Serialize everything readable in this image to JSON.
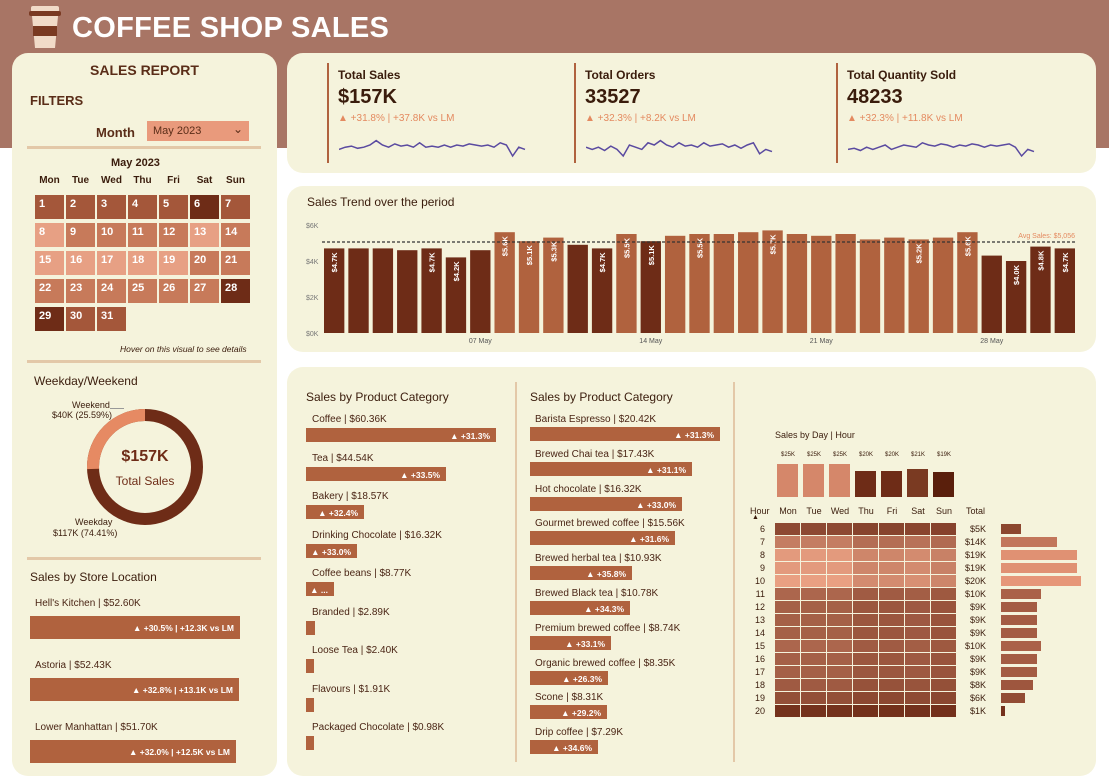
{
  "header": {
    "title": "COFFEE SHOP SALES"
  },
  "report": {
    "title": "SALES REPORT",
    "filters": "FILTERS",
    "month_label": "Month",
    "month_value": "May 2023"
  },
  "calendar": {
    "title": "May 2023",
    "days": [
      "Mon",
      "Tue",
      "Wed",
      "Thu",
      "Fri",
      "Sat",
      "Sun"
    ],
    "hint": "Hover on this visual to see details",
    "dates": [
      {
        "d": "1",
        "c": "#a4573a"
      },
      {
        "d": "2",
        "c": "#a4573a"
      },
      {
        "d": "3",
        "c": "#a4573a"
      },
      {
        "d": "4",
        "c": "#a4573a"
      },
      {
        "d": "5",
        "c": "#a4573a"
      },
      {
        "d": "6",
        "c": "#6e2c17"
      },
      {
        "d": "7",
        "c": "#a4573a"
      },
      {
        "d": "8",
        "c": "#e7a084"
      },
      {
        "d": "9",
        "c": "#c77a5a"
      },
      {
        "d": "10",
        "c": "#c77a5a"
      },
      {
        "d": "11",
        "c": "#c77a5a"
      },
      {
        "d": "12",
        "c": "#c77a5a"
      },
      {
        "d": "13",
        "c": "#e7a084"
      },
      {
        "d": "14",
        "c": "#c77a5a"
      },
      {
        "d": "15",
        "c": "#e7a084"
      },
      {
        "d": "16",
        "c": "#e7a084"
      },
      {
        "d": "17",
        "c": "#e7a084"
      },
      {
        "d": "18",
        "c": "#e7a084"
      },
      {
        "d": "19",
        "c": "#e7a084"
      },
      {
        "d": "20",
        "c": "#c77a5a"
      },
      {
        "d": "21",
        "c": "#c77a5a"
      },
      {
        "d": "22",
        "c": "#c77a5a"
      },
      {
        "d": "23",
        "c": "#c77a5a"
      },
      {
        "d": "24",
        "c": "#c77a5a"
      },
      {
        "d": "25",
        "c": "#c77a5a"
      },
      {
        "d": "26",
        "c": "#c77a5a"
      },
      {
        "d": "27",
        "c": "#c77a5a"
      },
      {
        "d": "28",
        "c": "#6e2c17"
      },
      {
        "d": "29",
        "c": "#6e2c17"
      },
      {
        "d": "30",
        "c": "#a4573a"
      },
      {
        "d": "31",
        "c": "#a4573a"
      }
    ]
  },
  "weekday": {
    "title": "Weekday/Weekend",
    "center_value": "$157K",
    "center_label": "Total Sales",
    "weekend_label": "Weekend",
    "weekend_value": "$40K (25.59%)",
    "weekday_label": "Weekday",
    "weekday_value": "$117K (74.41%)",
    "weekend_share": 0.2559
  },
  "stores": {
    "title": "Sales by Store Location",
    "items": [
      {
        "name": "Hell's Kitchen | $52.60K",
        "change": "▲ +30.5% | +12.3K vs LM",
        "value": 52.6
      },
      {
        "name": "Astoria | $52.43K",
        "change": "▲ +32.8% | +13.1K vs LM",
        "value": 52.43
      },
      {
        "name": "Lower Manhattan | $51.70K",
        "change": "▲ +32.0% | +12.5K vs LM",
        "value": 51.7
      }
    ]
  },
  "kpis": [
    {
      "title": "Total Sales",
      "value": "$157K",
      "change": "▲ +31.8% | +37.8K vs LM"
    },
    {
      "title": "Total Orders",
      "value": "33527",
      "change": "▲ +32.3% | +8.2K vs LM"
    },
    {
      "title": "Total Quantity Sold",
      "value": "48233",
      "change": "▲ +32.3% | +11.8K vs LM"
    }
  ],
  "trend": {
    "title": "Sales Trend over the period",
    "avg_label": "Avg Sales: $5,056",
    "y_ticks": [
      "$6K",
      "$4K",
      "$2K",
      "$0K"
    ],
    "x_ticks": [
      "07 May",
      "14 May",
      "21 May",
      "28 May"
    ],
    "avg": 5.056,
    "bars": [
      {
        "v": 4.7,
        "l": "$4.7K",
        "c": "#6e2c17"
      },
      {
        "v": 4.7,
        "l": "",
        "c": "#6e2c17"
      },
      {
        "v": 4.7,
        "l": "",
        "c": "#6e2c17"
      },
      {
        "v": 4.6,
        "l": "",
        "c": "#6e2c17"
      },
      {
        "v": 4.7,
        "l": "$4.7K",
        "c": "#6e2c17"
      },
      {
        "v": 4.2,
        "l": "$4.2K",
        "c": "#6e2c17"
      },
      {
        "v": 4.6,
        "l": "",
        "c": "#6e2c17"
      },
      {
        "v": 5.6,
        "l": "$5.6K",
        "c": "#b0623e"
      },
      {
        "v": 5.1,
        "l": "$5.1K",
        "c": "#b0623e"
      },
      {
        "v": 5.3,
        "l": "$5.3K",
        "c": "#b0623e"
      },
      {
        "v": 4.9,
        "l": "",
        "c": "#6e2c17"
      },
      {
        "v": 4.7,
        "l": "$4.7K",
        "c": "#6e2c17"
      },
      {
        "v": 5.5,
        "l": "$5.5K",
        "c": "#b0623e"
      },
      {
        "v": 5.1,
        "l": "$5.1K",
        "c": "#6e2c17"
      },
      {
        "v": 5.4,
        "l": "",
        "c": "#b0623e"
      },
      {
        "v": 5.5,
        "l": "$5.5K",
        "c": "#b0623e"
      },
      {
        "v": 5.5,
        "l": "",
        "c": "#b0623e"
      },
      {
        "v": 5.6,
        "l": "",
        "c": "#b0623e"
      },
      {
        "v": 5.7,
        "l": "$5.7K",
        "c": "#b0623e"
      },
      {
        "v": 5.5,
        "l": "",
        "c": "#b0623e"
      },
      {
        "v": 5.4,
        "l": "",
        "c": "#b0623e"
      },
      {
        "v": 5.5,
        "l": "",
        "c": "#b0623e"
      },
      {
        "v": 5.2,
        "l": "",
        "c": "#b0623e"
      },
      {
        "v": 5.3,
        "l": "",
        "c": "#b0623e"
      },
      {
        "v": 5.2,
        "l": "$5.2K",
        "c": "#b0623e"
      },
      {
        "v": 5.3,
        "l": "",
        "c": "#b0623e"
      },
      {
        "v": 5.6,
        "l": "$5.6K",
        "c": "#b0623e"
      },
      {
        "v": 4.3,
        "l": "",
        "c": "#6e2c17"
      },
      {
        "v": 4.0,
        "l": "$4.0K",
        "c": "#6e2c17"
      },
      {
        "v": 4.8,
        "l": "$4.8K",
        "c": "#6e2c17"
      },
      {
        "v": 4.7,
        "l": "$4.7K",
        "c": "#6e2c17"
      }
    ]
  },
  "category": {
    "title": "Sales by Product Category",
    "items": [
      {
        "name": "Coffee | $60.36K",
        "change": "▲ +31.3%",
        "value": 60.36
      },
      {
        "name": "Tea | $44.54K",
        "change": "▲ +33.5%",
        "value": 44.54
      },
      {
        "name": "Bakery | $18.57K",
        "change": "▲ +32.4%",
        "value": 18.57
      },
      {
        "name": "Drinking Chocolate | $16.32K",
        "change": "▲ +33.0%",
        "value": 16.32
      },
      {
        "name": "Coffee beans | $8.77K",
        "change": "▲ ...",
        "value": 8.77
      },
      {
        "name": "Branded | $2.89K",
        "change": "",
        "value": 2.89
      },
      {
        "name": "Loose Tea | $2.40K",
        "change": "",
        "value": 2.4
      },
      {
        "name": "Flavours | $1.91K",
        "change": "",
        "value": 1.91
      },
      {
        "name": "Packaged Chocolate | $0.98K",
        "change": "",
        "value": 0.98
      }
    ]
  },
  "product": {
    "title": "Sales by Product Category",
    "items": [
      {
        "name": "Barista Espresso | $20.42K",
        "change": "▲ +31.3%",
        "value": 20.42
      },
      {
        "name": "Brewed Chai tea | $17.43K",
        "change": "▲ +31.1%",
        "value": 17.43
      },
      {
        "name": "Hot chocolate | $16.32K",
        "change": "▲ +33.0%",
        "value": 16.32
      },
      {
        "name": "Gourmet brewed coffee | $15.56K",
        "change": "▲ +31.6%",
        "value": 15.56
      },
      {
        "name": "Brewed herbal tea | $10.93K",
        "change": "▲ +35.8%",
        "value": 10.93
      },
      {
        "name": "Brewed Black tea | $10.78K",
        "change": "▲ +34.3%",
        "value": 10.78
      },
      {
        "name": "Premium brewed coffee | $8.74K",
        "change": "▲ +33.1%",
        "value": 8.74
      },
      {
        "name": "Organic brewed coffee | $8.35K",
        "change": "▲ +26.3%",
        "value": 8.35
      },
      {
        "name": "Scone | $8.31K",
        "change": "▲ +29.2%",
        "value": 8.31
      },
      {
        "name": "Drip coffee | $7.29K",
        "change": "▲ +34.6%",
        "value": 7.29
      }
    ]
  },
  "heatmap": {
    "title": "Sales by Day | Hour",
    "hour_label": "Hour",
    "total_label": "Total",
    "days": [
      "Mon",
      "Tue",
      "Wed",
      "Thu",
      "Fri",
      "Sat",
      "Sun"
    ],
    "day_totals": [
      {
        "l": "$25K",
        "v": 25,
        "c": "#d5876a"
      },
      {
        "l": "$25K",
        "v": 25,
        "c": "#d5876a"
      },
      {
        "l": "$25K",
        "v": 25,
        "c": "#d5876a"
      },
      {
        "l": "$20K",
        "v": 20,
        "c": "#6e2c17"
      },
      {
        "l": "$20K",
        "v": 20,
        "c": "#6e2c17"
      },
      {
        "l": "$21K",
        "v": 21,
        "c": "#7a3a22"
      },
      {
        "l": "$19K",
        "v": 19,
        "c": "#5a1f0c"
      }
    ],
    "hours": [
      {
        "h": "6",
        "t": "$5K",
        "v": 5
      },
      {
        "h": "7",
        "t": "$14K",
        "v": 14
      },
      {
        "h": "8",
        "t": "$19K",
        "v": 19
      },
      {
        "h": "9",
        "t": "$19K",
        "v": 19
      },
      {
        "h": "10",
        "t": "$20K",
        "v": 20
      },
      {
        "h": "11",
        "t": "$10K",
        "v": 10
      },
      {
        "h": "12",
        "t": "$9K",
        "v": 9
      },
      {
        "h": "13",
        "t": "$9K",
        "v": 9
      },
      {
        "h": "14",
        "t": "$9K",
        "v": 9
      },
      {
        "h": "15",
        "t": "$10K",
        "v": 10
      },
      {
        "h": "16",
        "t": "$9K",
        "v": 9
      },
      {
        "h": "17",
        "t": "$9K",
        "v": 9
      },
      {
        "h": "18",
        "t": "$8K",
        "v": 8
      },
      {
        "h": "19",
        "t": "$6K",
        "v": 6
      },
      {
        "h": "20",
        "t": "$1K",
        "v": 1
      }
    ]
  }
}
